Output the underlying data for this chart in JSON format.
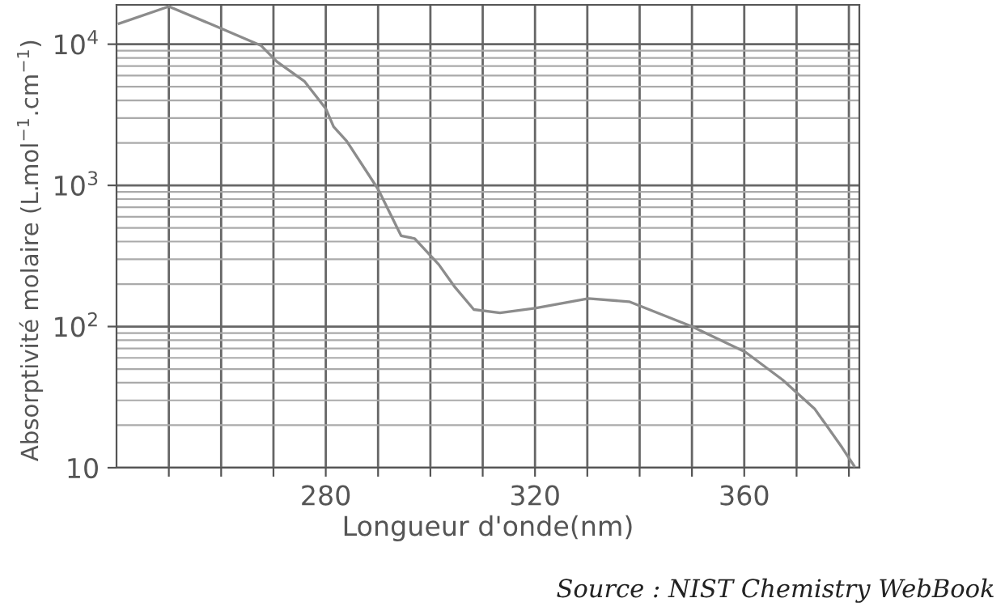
{
  "chart_data": {
    "type": "line",
    "xlabel": "Longueur d'onde(nm)",
    "ylabel": "Absorptivité molaire (L.mol$^{−1}$.cm$^{−1}$)",
    "log": "y",
    "grid": true,
    "marker": "none",
    "line_style": "solid",
    "x": [
      240.5,
      250,
      258.4,
      267.6,
      270.7,
      275.9,
      280,
      281.5,
      284,
      290,
      294.4,
      297,
      301.6,
      304.7,
      308.3,
      313.3,
      320,
      330.2,
      338,
      350,
      360.2,
      367.3,
      373.5,
      378.7,
      381
    ],
    "series": [
      {
        "color": "#8c8c8c",
        "values": [
          14000,
          18500,
          13700,
          9800,
          7500,
          5470,
          3500,
          2600,
          2060,
          940,
          440,
          420,
          275,
          190,
          132,
          125,
          135,
          158,
          150,
          100,
          66,
          42,
          26,
          13.9,
          10.3
        ]
      }
    ],
    "xlim": [
      240,
      382
    ],
    "ylim": [
      10,
      19000
    ],
    "xticks": [
      {
        "value": 250,
        "label": null
      },
      {
        "value": 260,
        "label": null
      },
      {
        "value": 270,
        "label": null
      },
      280,
      {
        "value": 290,
        "label": null
      },
      {
        "value": 300,
        "label": null
      },
      {
        "value": 310,
        "label": null
      },
      320,
      {
        "value": 330,
        "label": null
      },
      {
        "value": 340,
        "label": null
      },
      {
        "value": 350,
        "label": null
      },
      360,
      {
        "value": 370,
        "label": null
      },
      {
        "value": 380,
        "label": null
      }
    ],
    "yticks": [
      10,
      {
        "value": 100,
        "label": "10$^{2}$"
      },
      {
        "value": 1000,
        "label": "10$^{3}$"
      },
      {
        "value": 10000,
        "label": "10$^{4}$"
      }
    ],
    "annotations": [
      "Source : NIST Chemistry WebBook"
    ]
  }
}
